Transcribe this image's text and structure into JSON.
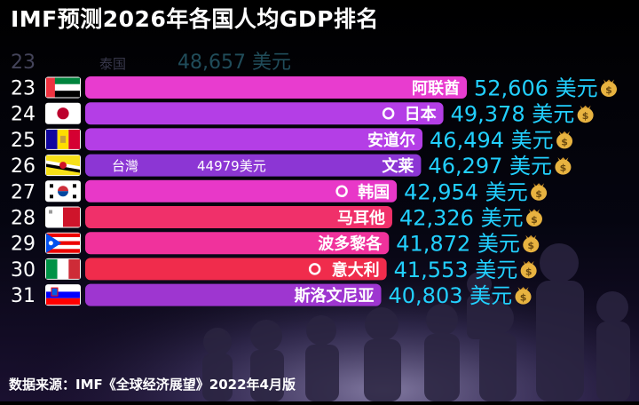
{
  "title": "IMF预测2026年各国人均GDP排名",
  "source": "数据来源：IMF《全球经济展望》2022年4月版",
  "unit_label": "美元",
  "colors": {
    "value_text": "#22d0ff",
    "background": "#000000"
  },
  "chart_data": {
    "type": "bar",
    "orientation": "horizontal",
    "title": "IMF预测2026年各国人均GDP排名",
    "unit": "美元",
    "ranks": [
      23,
      24,
      25,
      26,
      27,
      28,
      29,
      30,
      31
    ],
    "categories": [
      "阿联酋",
      "日本",
      "安道尔",
      "文莱",
      "韩国",
      "马耳他",
      "波多黎各",
      "意大利",
      "斯洛文尼亚"
    ],
    "values": [
      52606,
      49378,
      46494,
      46297,
      42954,
      42326,
      41872,
      41553,
      40803
    ],
    "value_labels": [
      "52,606",
      "49,378",
      "46,494",
      "46,297",
      "42,954",
      "42,326",
      "41,872",
      "41,553",
      "40,803"
    ],
    "bar_colors": [
      "#e83ccf",
      "#b43ee6",
      "#b43ee6",
      "#8c36d4",
      "#e838c8",
      "#f0306a",
      "#f0329c",
      "#f02c4c",
      "#9e36d0"
    ],
    "flags": [
      "uae-flag",
      "japan-flag",
      "andorra-flag",
      "brunei-flag",
      "korea-flag",
      "malta-flag",
      "puerto-rico-flag",
      "italy-flag",
      "slovenia-flag"
    ],
    "markers": [
      false,
      true,
      false,
      false,
      true,
      false,
      false,
      true,
      false
    ],
    "faded_entry": {
      "rank": "23",
      "label": "泰国",
      "value": "48,657 美元"
    },
    "annotation": {
      "label": "台灣",
      "value": "44979美元",
      "row_index": 3
    },
    "xlim": [
      0,
      52606
    ]
  }
}
